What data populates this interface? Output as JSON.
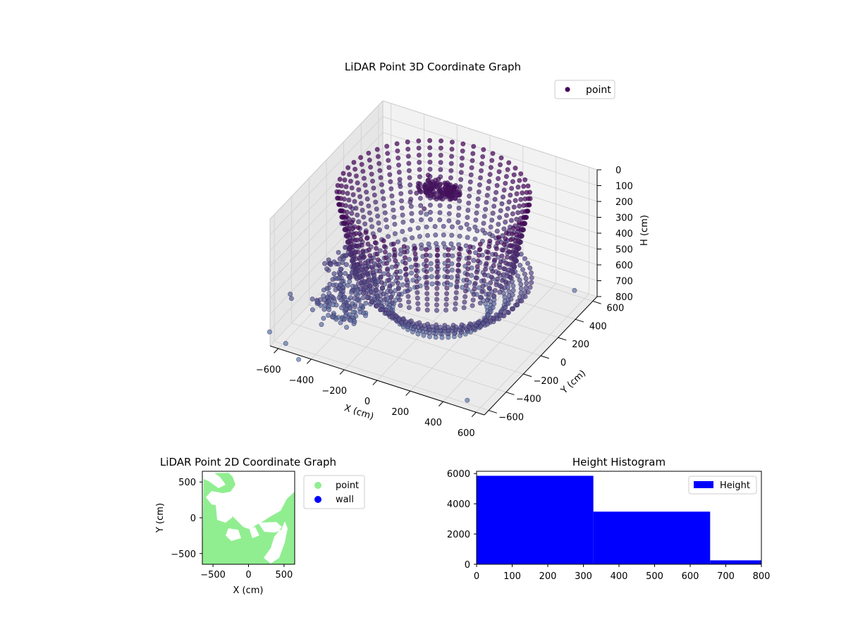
{
  "chart_data": [
    {
      "type": "scatter",
      "projection": "3d",
      "title": "LiDAR Point 3D Coordinate Graph",
      "xlabel": "X (cm)",
      "ylabel": "Y (cm)",
      "zlabel": "H (cm)",
      "xticks": [
        "−600",
        "−400",
        "−200",
        "0",
        "200",
        "400",
        "600"
      ],
      "yticks": [
        "−600",
        "−400",
        "−200",
        "0",
        "200",
        "400",
        "600"
      ],
      "zticks": [
        "0",
        "100",
        "200",
        "300",
        "400",
        "500",
        "600",
        "700",
        "800"
      ],
      "xlim": [
        -650,
        650
      ],
      "ylim": [
        -650,
        650
      ],
      "zlim": [
        0,
        800
      ],
      "z_axis_inverted": true,
      "legend": {
        "label": "point",
        "position": "top-right"
      },
      "colors": {
        "high": "#440154",
        "low": "#5b84ab"
      },
      "structure": {
        "ring_radius_cm": 520,
        "ring_rows": [
          5,
          45,
          85,
          125,
          165,
          205,
          245,
          285,
          325,
          365,
          405,
          445
        ],
        "column_count": 54,
        "base_cones": [
          {
            "center": [
              80,
              -30
            ],
            "radius": 470
          },
          {
            "center": [
              60,
              -10
            ],
            "radius": 380
          },
          {
            "center": [
              40,
              0
            ],
            "radius": 290
          }
        ],
        "stray_points": [
          [
            -620,
            -460,
            600
          ],
          [
            -680,
            -360,
            650
          ],
          [
            -700,
            -560,
            780
          ],
          [
            -560,
            -640,
            760
          ],
          [
            -450,
            -700,
            790
          ],
          [
            -380,
            640,
            620
          ],
          [
            520,
            -600,
            780
          ],
          [
            -620,
            120,
            460
          ],
          [
            -300,
            300,
            320
          ],
          [
            560,
            560,
            740
          ],
          [
            -200,
            -300,
            560
          ],
          [
            -400,
            -250,
            720
          ],
          [
            -650,
            300,
            480
          ],
          [
            -500,
            560,
            420
          ],
          [
            300,
            300,
            300
          ],
          [
            -120,
            120,
            200
          ]
        ],
        "clusters": [
          {
            "center": [
              -80,
              210
            ],
            "h": [
              80,
              150
            ],
            "spread": [
              110,
              60
            ]
          },
          {
            "center": [
              -440,
              -120
            ],
            "h": [
              450,
              680
            ],
            "spread": [
              110,
              130
            ]
          },
          {
            "center": [
              -380,
              -330
            ],
            "h": [
              560,
              720
            ],
            "spread": [
              120,
              120
            ]
          }
        ]
      }
    },
    {
      "type": "scatter",
      "title": "LiDAR Point 2D Coordinate Graph",
      "xlabel": "X (cm)",
      "ylabel": "Y (cm)",
      "xlim": [
        -650,
        650
      ],
      "ylim": [
        -650,
        650
      ],
      "xticks": [
        "−500",
        "0",
        "500"
      ],
      "yticks": [
        "500",
        "0",
        "−500"
      ],
      "series": [
        {
          "name": "point",
          "color": "#90ee90"
        },
        {
          "name": "wall",
          "color": "#0000ff"
        }
      ],
      "legend": "outside-right"
    },
    {
      "type": "bar",
      "title": "Height Histogram",
      "xlabel": "",
      "ylabel": "",
      "bins": [
        [
          0,
          328
        ],
        [
          328,
          656
        ],
        [
          656,
          984
        ]
      ],
      "values": [
        5850,
        3480,
        260
      ],
      "xlim": [
        0,
        800
      ],
      "ylim": [
        0,
        6150
      ],
      "xticks": [
        "0",
        "100",
        "200",
        "300",
        "400",
        "500",
        "600",
        "700",
        "800"
      ],
      "yticks": [
        "0",
        "2000",
        "4000",
        "6000"
      ],
      "series": [
        {
          "name": "Height",
          "color": "#0000ff"
        }
      ],
      "legend": "top-right"
    }
  ]
}
